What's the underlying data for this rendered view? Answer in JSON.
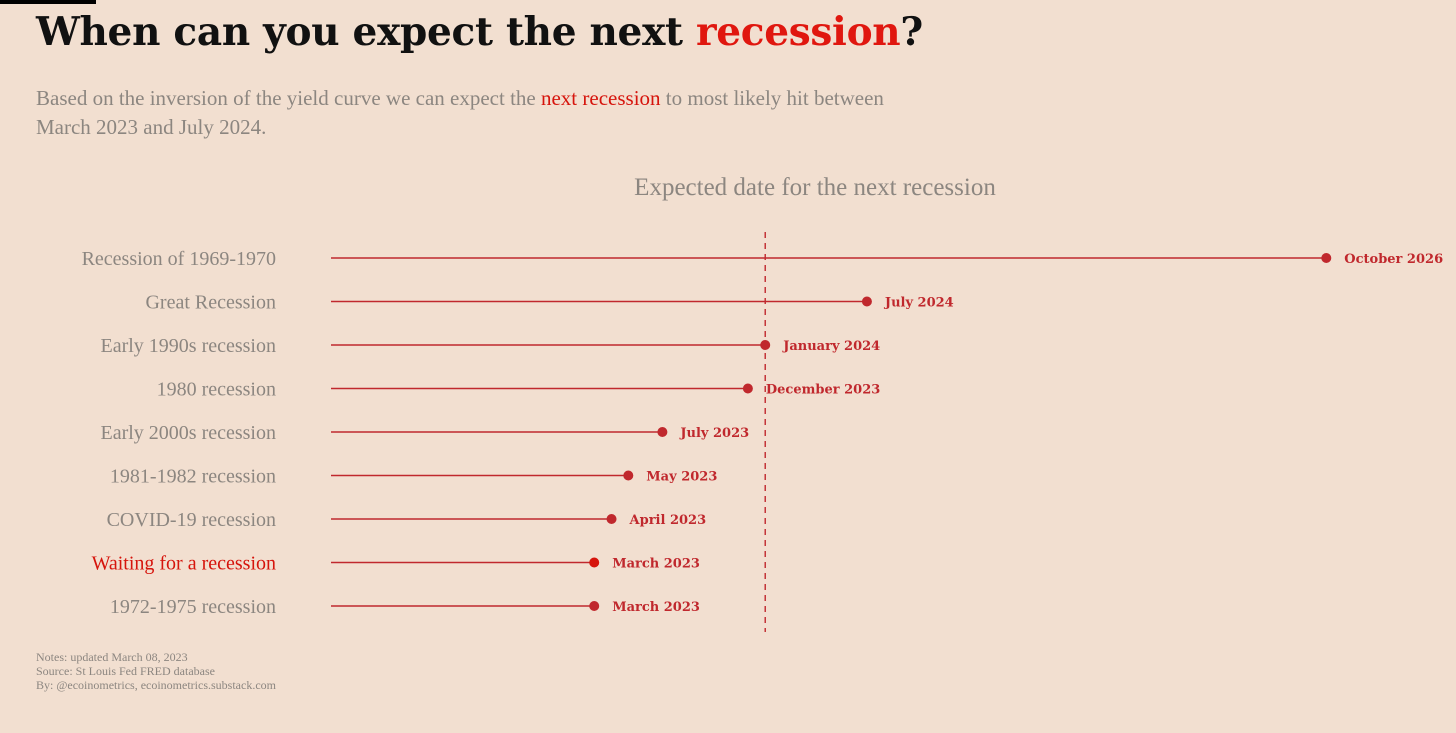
{
  "header": {
    "title_before": "When can you expect the next ",
    "title_highlight": "recession",
    "title_after": "?",
    "subtitle_before": "Based on the inversion of the yield curve we can expect the ",
    "subtitle_highlight": "next recession",
    "subtitle_after": " to most likely hit between March 2023 and July 2024."
  },
  "colors": {
    "background": "#f2dfd0",
    "accent": "#e0170f",
    "line": "#c0282d",
    "label_gray": "#8c8680",
    "highlight_row": "#d6140c"
  },
  "chart_data": {
    "type": "lollipop",
    "title": "Expected date for the next recession",
    "x_axis": "date",
    "xlim": [
      "2021-11-15",
      "2026-12-20"
    ],
    "reference_line": "2024-01-01",
    "rows": [
      {
        "category": "Recession of 1969-1970",
        "value": "2026-10-01",
        "label": "October 2026",
        "highlight": false
      },
      {
        "category": "Great Recession",
        "value": "2024-07-01",
        "label": "July 2024",
        "highlight": false
      },
      {
        "category": "Early 1990s recession",
        "value": "2024-01-01",
        "label": "January 2024",
        "highlight": false
      },
      {
        "category": "1980 recession",
        "value": "2023-12-01",
        "label": "December 2023",
        "highlight": false
      },
      {
        "category": "Early 2000s recession",
        "value": "2023-07-01",
        "label": "July 2023",
        "highlight": false
      },
      {
        "category": "1981-1982 recession",
        "value": "2023-05-01",
        "label": "May 2023",
        "highlight": false
      },
      {
        "category": "COVID-19 recession",
        "value": "2023-04-01",
        "label": "April 2023",
        "highlight": false
      },
      {
        "category": "Waiting for a recession",
        "value": "2023-03-01",
        "label": "March 2023",
        "highlight": true
      },
      {
        "category": "1972-1975 recession",
        "value": "2023-03-01",
        "label": "March 2023",
        "highlight": false
      }
    ]
  },
  "notes": {
    "line1": "Notes: updated March 08, 2023",
    "line2": "Source: St Louis Fed FRED database",
    "line3": "By: @ecoinometrics, ecoinometrics.substack.com"
  }
}
